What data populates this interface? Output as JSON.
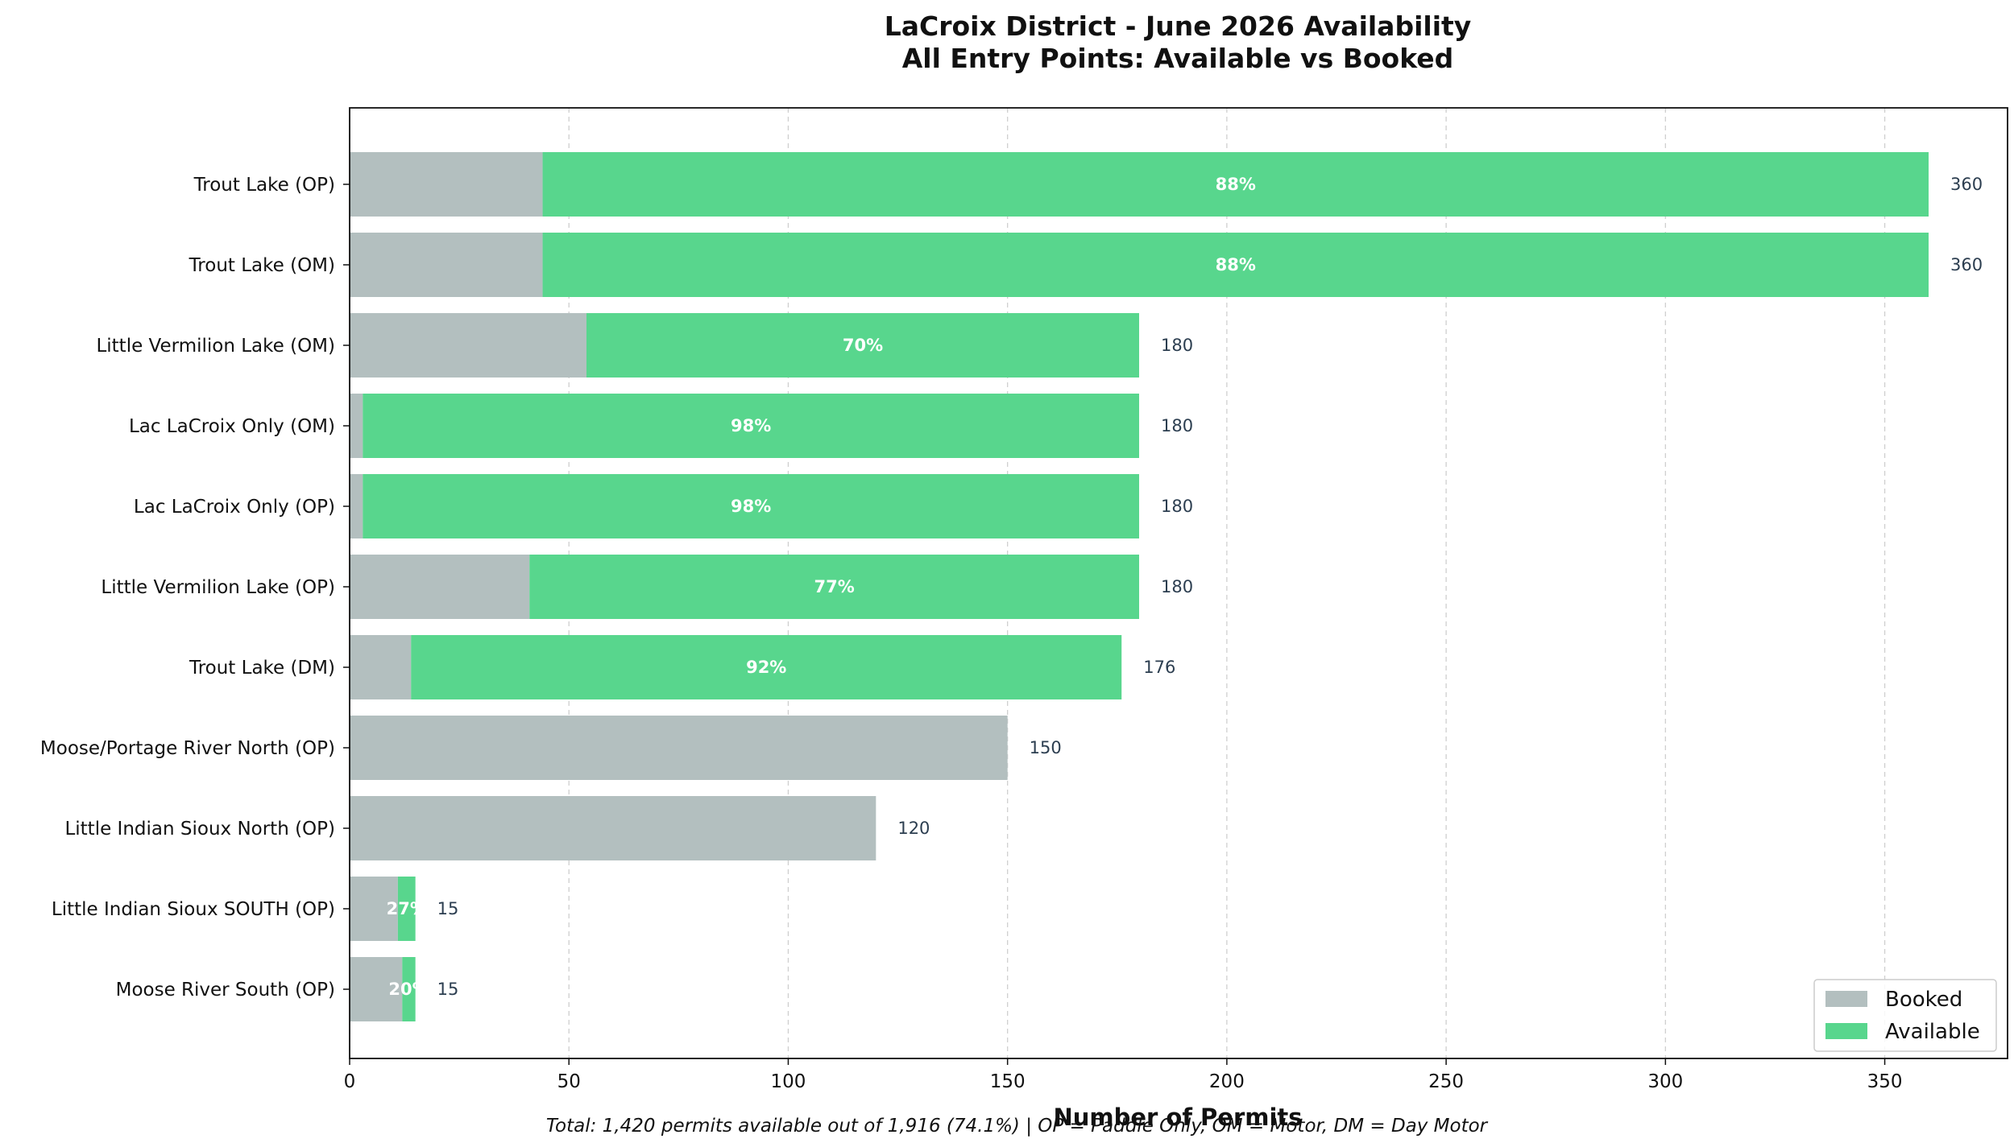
{
  "chart_data": {
    "type": "bar",
    "orientation": "horizontal",
    "stacked": true,
    "title": "LaCroix District - June 2026 Availability",
    "subtitle": "All Entry Points: Available vs Booked",
    "xlabel": "Number of Permits",
    "ylabel": "",
    "xlim": [
      0,
      378
    ],
    "xticks": [
      "0",
      "50",
      "100",
      "150",
      "200",
      "250",
      "300",
      "350"
    ],
    "grid": "x, dashed",
    "legend_position": "bottom-right",
    "colors": {
      "Booked": "#b3bfbf",
      "Available": "#58d68d"
    },
    "categories": [
      "Trout Lake (OP)",
      "Trout Lake (OM)",
      "Little Vermilion Lake (OM)",
      "Lac LaCroix Only (OM)",
      "Lac LaCroix Only (OP)",
      "Little Vermilion Lake (OP)",
      "Trout Lake (DM)",
      "Moose/Portage River North (OP)",
      "Little Indian Sioux North (OP)",
      "Little Indian Sioux SOUTH (OP)",
      "Moose River South (OP)"
    ],
    "series": [
      {
        "name": "Booked",
        "values": [
          44,
          44,
          54,
          3,
          3,
          41,
          14,
          150,
          120,
          11,
          12
        ]
      },
      {
        "name": "Available",
        "values": [
          316,
          316,
          126,
          177,
          177,
          139,
          162,
          0,
          0,
          4,
          3
        ]
      }
    ],
    "totals": [
      "360",
      "360",
      "180",
      "180",
      "180",
      "180",
      "176",
      "150",
      "120",
      "15",
      "15"
    ],
    "pct_labels": [
      "88%",
      "88%",
      "70%",
      "98%",
      "98%",
      "77%",
      "92%",
      "",
      "",
      "27%",
      "20%"
    ],
    "footnote": "Total: 1,420 permits available out of 1,916 (74.1%) | OP = Paddle Only, OM = Motor, DM = Day Motor"
  }
}
